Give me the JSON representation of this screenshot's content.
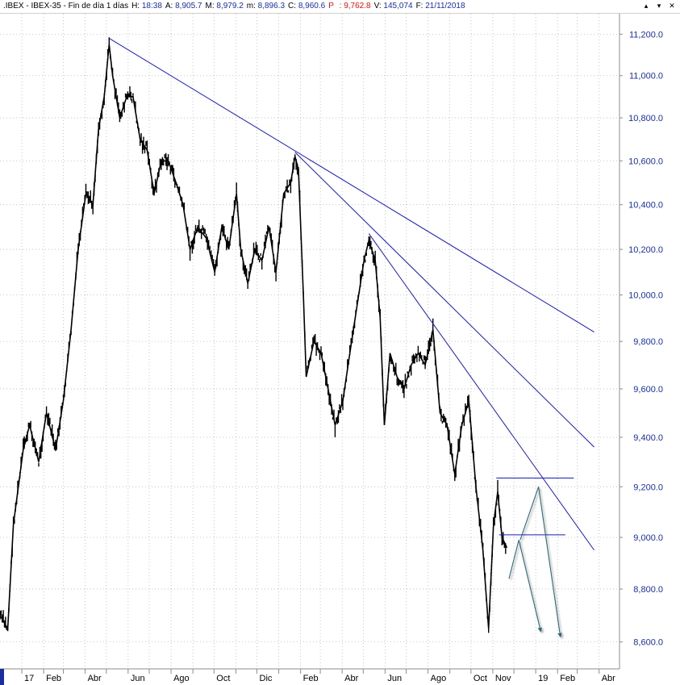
{
  "header": {
    "title": ".IBEX - IBEX-35 - Fin de día 1 días",
    "fields": [
      {
        "label": "H:",
        "value": "18:38",
        "color": "#1a2ea0"
      },
      {
        "label": "A:",
        "value": "8,905.7",
        "color": "#1a2ea0"
      },
      {
        "label": "M:",
        "value": "8,979.2",
        "color": "#1a2ea0"
      },
      {
        "label": "m:",
        "value": "8,896.3",
        "color": "#1a2ea0"
      },
      {
        "label": "C:",
        "value": "8,960.6",
        "color": "#1a2ea0"
      },
      {
        "label": "P",
        "value": ": 9,762.8",
        "color": "#e01010"
      },
      {
        "label": "V:",
        "value": "145,074",
        "color": "#1a2ea0"
      },
      {
        "label": "F:",
        "value": "21/11/2018",
        "color": "#1a2ea0"
      }
    ],
    "window_controls": [
      "▴",
      "▾",
      "✕"
    ]
  },
  "chart_data": {
    "type": "line",
    "title": "",
    "xlabel": "",
    "ylabel": "",
    "ylim": [
      8500,
      11300
    ],
    "grid": true,
    "y_ticks": [
      "8,600.0",
      "8,800.0",
      "9,000.0",
      "9,200.0",
      "9,400.0",
      "9,600.0",
      "9,800.0",
      "10,000.0",
      "10,200.0",
      "10,400.0",
      "10,600.0",
      "10,800.0",
      "11,000.0",
      "11,200.0"
    ],
    "x_ticks": [
      "17",
      "Feb",
      "Abr",
      "Jun",
      "Ago",
      "Oct",
      "Dic",
      "Feb",
      "Abr",
      "Jun",
      "Ago",
      "Oct",
      "Nov",
      "19",
      "Feb",
      "Abr"
    ],
    "x_range": [
      "2016-12-01",
      "2019-04-30"
    ],
    "series": [
      {
        "color": "#000000",
        "points": [
          [
            "2016-12-01",
            8700
          ],
          [
            "2016-12-12",
            8650
          ],
          [
            "2016-12-20",
            9050
          ],
          [
            "2017-01-03",
            9350
          ],
          [
            "2017-01-12",
            9450
          ],
          [
            "2017-01-25",
            9300
          ],
          [
            "2017-02-05",
            9500
          ],
          [
            "2017-02-18",
            9350
          ],
          [
            "2017-03-01",
            9550
          ],
          [
            "2017-03-12",
            9850
          ],
          [
            "2017-03-22",
            10200
          ],
          [
            "2017-04-02",
            10450
          ],
          [
            "2017-04-12",
            10400
          ],
          [
            "2017-04-20",
            10750
          ],
          [
            "2017-04-28",
            10900
          ],
          [
            "2017-05-05",
            11150
          ],
          [
            "2017-05-10",
            11000
          ],
          [
            "2017-05-20",
            10800
          ],
          [
            "2017-05-30",
            10900
          ],
          [
            "2017-06-08",
            10900
          ],
          [
            "2017-06-18",
            10700
          ],
          [
            "2017-06-28",
            10650
          ],
          [
            "2017-07-08",
            10450
          ],
          [
            "2017-07-18",
            10600
          ],
          [
            "2017-07-28",
            10600
          ],
          [
            "2017-08-08",
            10500
          ],
          [
            "2017-08-18",
            10400
          ],
          [
            "2017-08-28",
            10200
          ],
          [
            "2017-09-08",
            10300
          ],
          [
            "2017-09-20",
            10250
          ],
          [
            "2017-10-02",
            10100
          ],
          [
            "2017-10-12",
            10300
          ],
          [
            "2017-10-22",
            10200
          ],
          [
            "2017-11-02",
            10450
          ],
          [
            "2017-11-08",
            10200
          ],
          [
            "2017-11-18",
            10050
          ],
          [
            "2017-11-28",
            10200
          ],
          [
            "2017-12-08",
            10150
          ],
          [
            "2017-12-18",
            10300
          ],
          [
            "2017-12-28",
            10100
          ],
          [
            "2018-01-08",
            10450
          ],
          [
            "2018-01-18",
            10500
          ],
          [
            "2018-01-24",
            10620
          ],
          [
            "2018-01-29",
            10560
          ],
          [
            "2018-02-05",
            10000
          ],
          [
            "2018-02-09",
            9650
          ],
          [
            "2018-02-20",
            9800
          ],
          [
            "2018-03-02",
            9750
          ],
          [
            "2018-03-12",
            9600
          ],
          [
            "2018-03-22",
            9450
          ],
          [
            "2018-04-02",
            9550
          ],
          [
            "2018-04-12",
            9750
          ],
          [
            "2018-04-22",
            9950
          ],
          [
            "2018-05-02",
            10150
          ],
          [
            "2018-05-09",
            10240
          ],
          [
            "2018-05-18",
            10150
          ],
          [
            "2018-05-25",
            9900
          ],
          [
            "2018-05-31",
            9450
          ],
          [
            "2018-06-08",
            9750
          ],
          [
            "2018-06-18",
            9650
          ],
          [
            "2018-06-28",
            9600
          ],
          [
            "2018-07-08",
            9700
          ],
          [
            "2018-07-18",
            9750
          ],
          [
            "2018-07-28",
            9700
          ],
          [
            "2018-08-08",
            9850
          ],
          [
            "2018-08-18",
            9500
          ],
          [
            "2018-08-28",
            9450
          ],
          [
            "2018-09-08",
            9250
          ],
          [
            "2018-09-18",
            9450
          ],
          [
            "2018-09-28",
            9550
          ],
          [
            "2018-10-08",
            9200
          ],
          [
            "2018-10-18",
            8950
          ],
          [
            "2018-10-26",
            8650
          ],
          [
            "2018-11-02",
            9050
          ],
          [
            "2018-11-08",
            9180
          ],
          [
            "2018-11-14",
            9000
          ],
          [
            "2018-11-21",
            8960
          ]
        ]
      }
    ],
    "trendlines": [
      {
        "color": "#1a1ab8",
        "from": [
          "2017-05-05",
          11180
        ],
        "to": [
          "2019-03-25",
          9840
        ]
      },
      {
        "color": "#1a1ab8",
        "from": [
          "2018-01-24",
          10640
        ],
        "to": [
          "2019-03-25",
          9360
        ]
      },
      {
        "color": "#1a1ab8",
        "from": [
          "2018-05-09",
          10270
        ],
        "to": [
          "2019-03-25",
          8950
        ]
      },
      {
        "color": "#1a1ab8",
        "from": [
          "2018-11-06",
          9235
        ],
        "to": [
          "2019-02-24",
          9235
        ]
      },
      {
        "color": "#1a1ab8",
        "from": [
          "2018-11-10",
          9010
        ],
        "to": [
          "2019-02-12",
          9010
        ]
      }
    ],
    "projection_arrows": [
      {
        "color": "#2a6a78",
        "points": [
          [
            "2018-11-24",
            8840
          ],
          [
            "2018-12-08",
            8990
          ],
          [
            "2019-01-08",
            8640
          ]
        ]
      },
      {
        "color": "#2a6a78",
        "points": [
          [
            "2018-12-10",
            8990
          ],
          [
            "2019-01-05",
            9200
          ],
          [
            "2019-02-05",
            8620
          ]
        ]
      }
    ]
  }
}
